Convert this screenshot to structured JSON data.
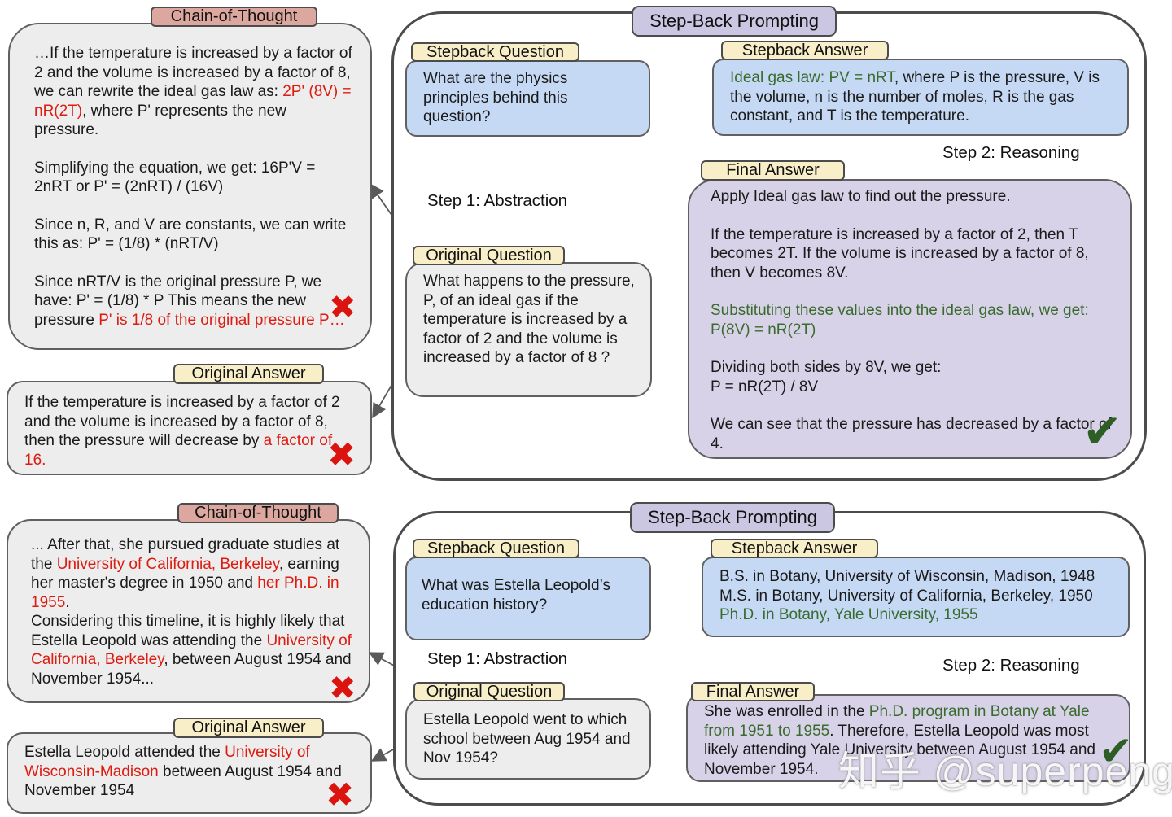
{
  "colors": {
    "red": "#dd1b10",
    "green": "#3a6b2e"
  },
  "icons": {
    "cross": "✖",
    "check": "✔"
  },
  "watermark": "知乎 @superpeng",
  "sections": [
    {
      "title": "Step-Back Prompting",
      "cot_label": "Chain-of-Thought",
      "cot_paragraphs": [
        [
          {
            "t": "…If the temperature is increased by a factor of 2 and the volume is increased by a factor of 8, we can rewrite the ideal gas law as: "
          },
          {
            "t": "2P' (8V) = nR(2T)",
            "c": "red"
          },
          {
            "t": ", where P' represents the new pressure."
          }
        ],
        [
          {
            "t": "Simplifying the equation, we get: 16P'V = 2nRT or P' = (2nRT) / (16V)"
          }
        ],
        [
          {
            "t": "Since n, R, and V are constants, we can write this as: P' = (1/8) * (nRT/V)"
          }
        ],
        [
          {
            "t": "Since nRT/V is the original pressure P, we have: P' = (1/8) * P This means the new pressure "
          },
          {
            "t": "P' is 1/8 of the original pressure P…",
            "c": "red"
          }
        ]
      ],
      "oa_label": "Original Answer",
      "oa_text": [
        [
          {
            "t": "If the temperature is increased by a factor of 2 and the volume is increased by a factor of 8, then the pressure will decrease by "
          },
          {
            "t": "a factor of 16.",
            "c": "red"
          }
        ]
      ],
      "sq_label": "Stepback Question",
      "sq_text": [
        [
          {
            "t": "What are the physics principles behind this question?"
          }
        ]
      ],
      "sa_label": "Stepback Answer",
      "sa_text": [
        [
          {
            "t": "Ideal gas law: PV = nRT",
            "c": "green"
          },
          {
            "t": ", where P is the pressure, V is the volume, n is the number of moles, R is the gas constant, and T is the temperature."
          }
        ]
      ],
      "oq_label": "Original Question",
      "oq_text": [
        [
          {
            "t": "What happens to the pressure, P, of an ideal gas if the temperature is increased by a factor of 2 and the volume is increased by a factor of 8 ?"
          }
        ]
      ],
      "fa_label": "Final Answer",
      "fa_paragraphs": [
        [
          {
            "t": "Apply Ideal gas law to find out the pressure."
          }
        ],
        [
          {
            "t": "If the temperature is increased by a factor of 2, then T becomes 2T. If the volume is increased by a factor of 8, then V becomes 8V."
          }
        ],
        [
          {
            "t": "Substituting these values into the ideal gas law, we get:",
            "c": "green"
          }
        ],
        [
          {
            "t": "P(8V) = nR(2T)",
            "c": "green"
          }
        ],
        [
          {
            "t": "Dividing both sides by 8V, we get:"
          }
        ],
        [
          {
            "t": "P = nR(2T) / 8V"
          }
        ],
        [
          {
            "t": "We can see that the pressure has decreased by a factor of 4."
          }
        ]
      ],
      "step1": "Step 1: Abstraction",
      "step2": "Step 2: Reasoning"
    },
    {
      "title": "Step-Back Prompting",
      "cot_label": "Chain-of-Thought",
      "cot_paragraphs": [
        [
          {
            "t": "... After that, she pursued graduate studies at the "
          },
          {
            "t": "University of California, Berkeley",
            "c": "red"
          },
          {
            "t": ", earning her master's degree in 1950 and "
          },
          {
            "t": "her Ph.D. in 1955",
            "c": "red"
          },
          {
            "t": "."
          }
        ],
        [
          {
            "t": "Considering this timeline, it is highly likely that Estella Leopold was attending the "
          },
          {
            "t": "University of California, Berkeley",
            "c": "red"
          },
          {
            "t": ", between August 1954 and November 1954..."
          }
        ]
      ],
      "oa_label": "Original Answer",
      "oa_text": [
        [
          {
            "t": "Estella Leopold attended the "
          },
          {
            "t": "University of Wisconsin-Madison",
            "c": "red"
          },
          {
            "t": " between August 1954 and November 1954"
          }
        ]
      ],
      "sq_label": "Stepback Question",
      "sq_text": [
        [
          {
            "t": "What was Estella Leopold’s education history?"
          }
        ]
      ],
      "sa_label": "Stepback Answer",
      "sa_text": [
        [
          {
            "t": "B.S. in Botany, University of Wisconsin, Madison, 1948"
          }
        ],
        [
          {
            "t": "M.S. in Botany, University of California, Berkeley, 1950"
          }
        ],
        [
          {
            "t": "Ph.D. in Botany, Yale University, 1955",
            "c": "green"
          }
        ]
      ],
      "oq_label": "Original Question",
      "oq_text": [
        [
          {
            "t": "Estella Leopold went to which school between Aug 1954 and Nov 1954?"
          }
        ]
      ],
      "fa_label": "Final Answer",
      "fa_paragraphs": [
        [
          {
            "t": "She was enrolled in the "
          },
          {
            "t": "Ph.D. program in Botany at Yale from 1951 to 1955",
            "c": "green"
          },
          {
            "t": ". Therefore, Estella Leopold was most likely attending Yale University between August 1954 and November 1954."
          }
        ]
      ],
      "step1": "Step 1: Abstraction",
      "step2": "Step 2: Reasoning"
    }
  ]
}
